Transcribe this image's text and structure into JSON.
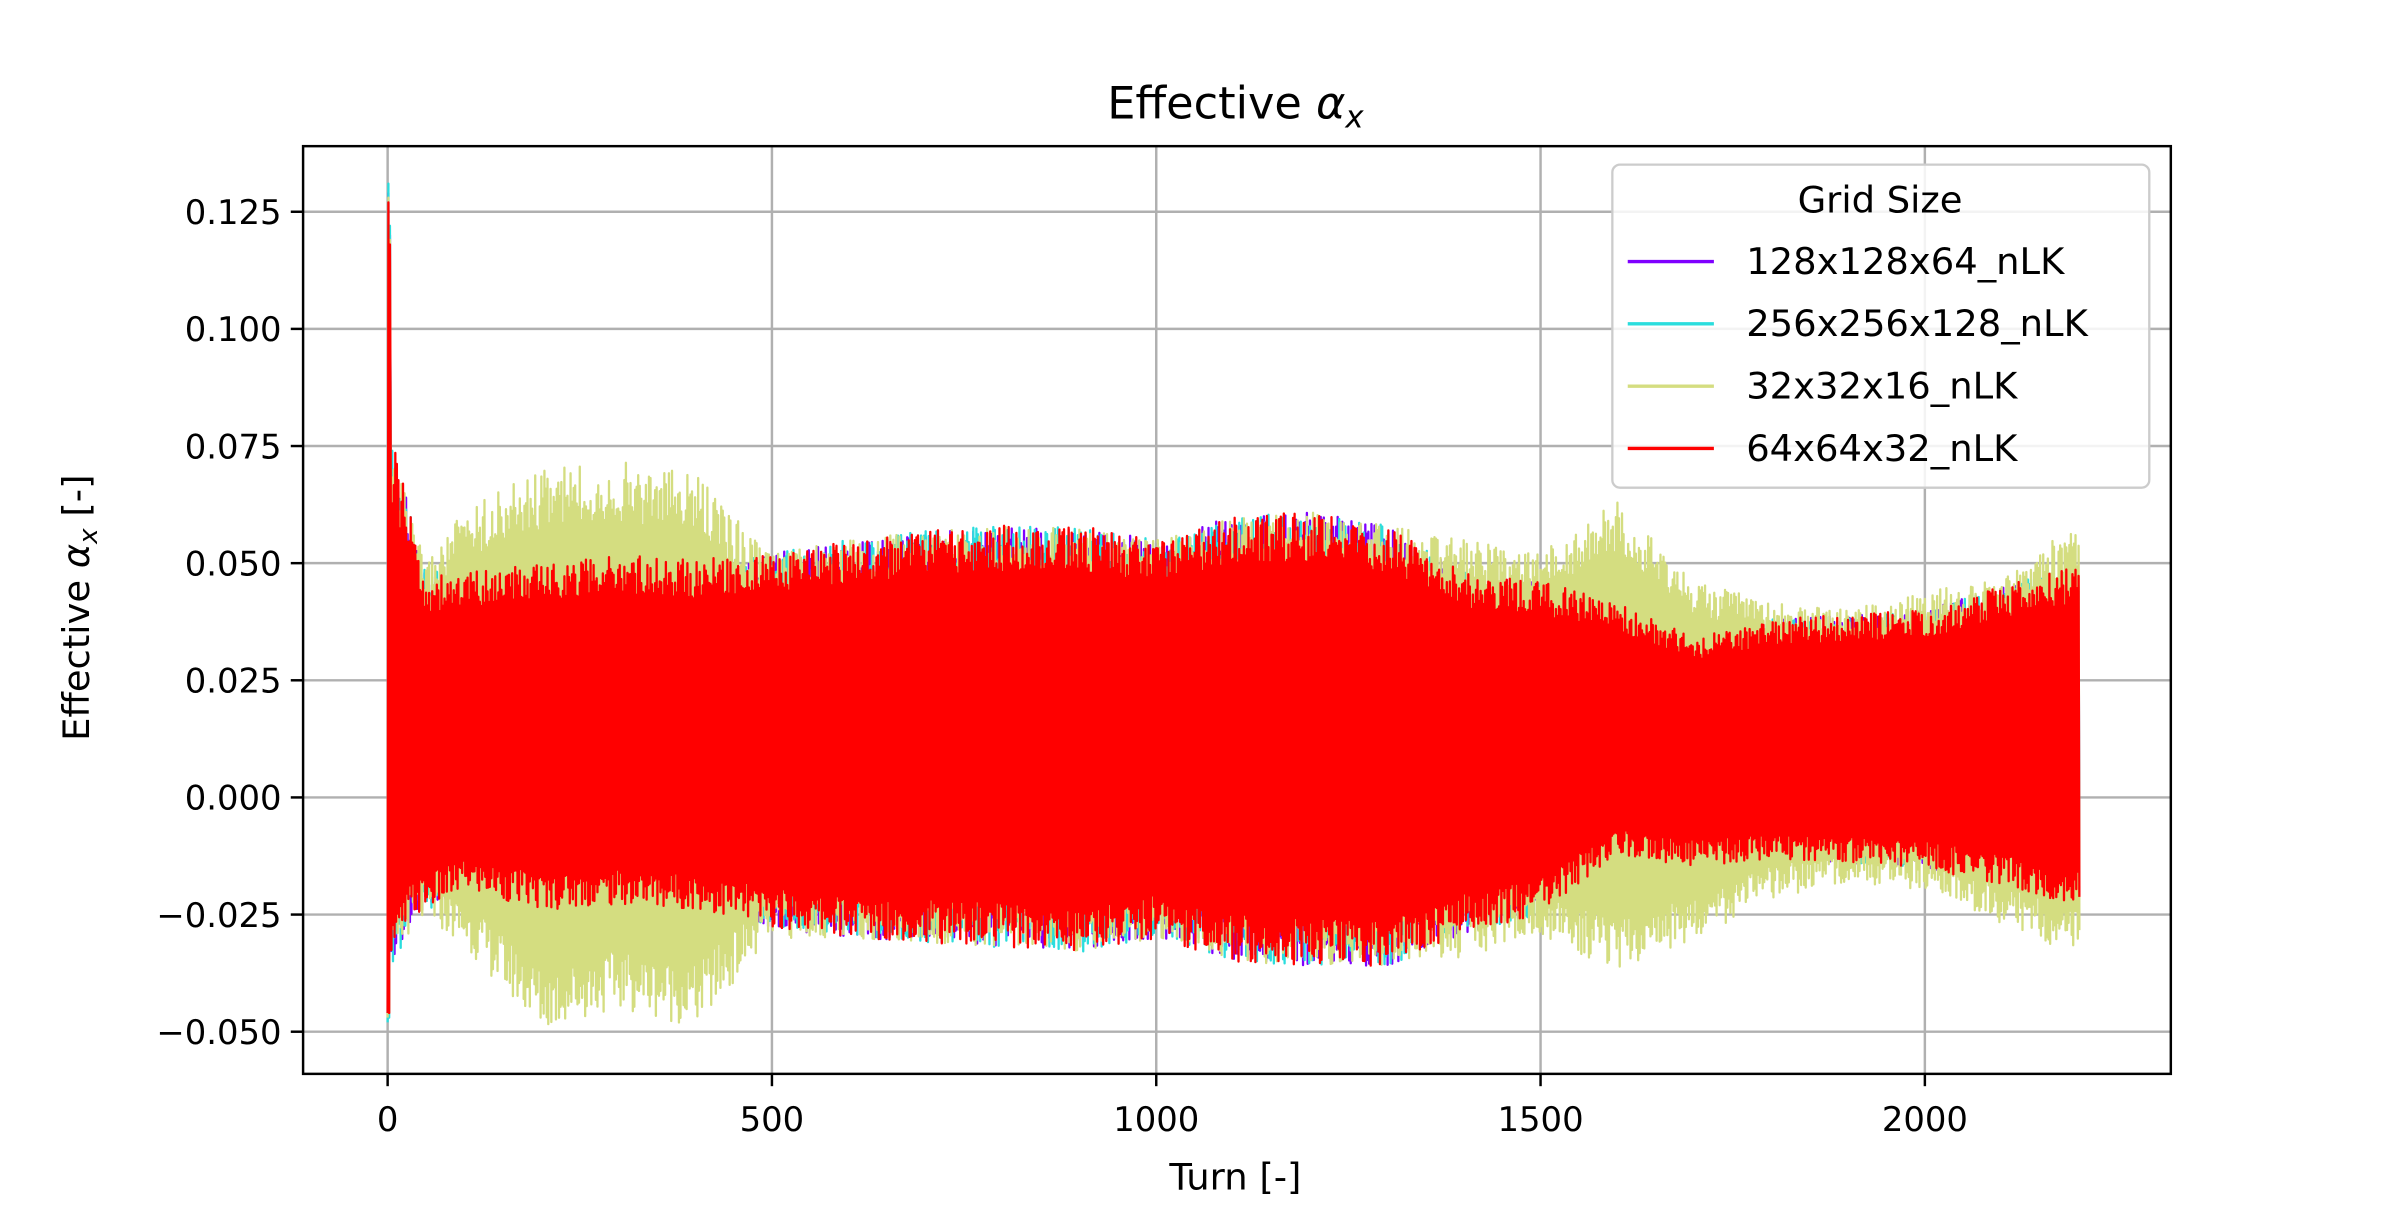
{
  "chart_data": {
    "type": "line",
    "title_main": "Effective ",
    "title_sym": "α",
    "title_sub": "x",
    "xlabel": "Turn [-]",
    "ylabel_pre": "Effective ",
    "ylabel_sym": "α",
    "ylabel_sub": "x",
    "ylabel_post": " [-]",
    "xlim": [
      -110,
      2320
    ],
    "ylim": [
      -0.059,
      0.139
    ],
    "xticks": [
      0,
      500,
      1000,
      1500,
      2000
    ],
    "xtick_labels": [
      "0",
      "500",
      "1000",
      "1500",
      "2000"
    ],
    "yticks": [
      -0.05,
      -0.025,
      0.0,
      0.025,
      0.05,
      0.075,
      0.1,
      0.125
    ],
    "ytick_labels": [
      "−0.050",
      "−0.025",
      "0.000",
      "0.025",
      "0.050",
      "0.075",
      "0.100",
      "0.125"
    ],
    "grid": true,
    "legend": {
      "title": "Grid Size",
      "placement": "top-right"
    },
    "oscillation_note": "Each series oscillates rapidly turn-by-turn between an upper and a lower envelope; envelope values below.",
    "series": [
      {
        "name": "128x128x64_nLK",
        "color": "#7f00ff",
        "first_point": [
          0,
          0.0
        ],
        "spike": [
          [
            0,
            -0.046
          ],
          [
            1,
            0.129
          ],
          [
            2,
            -0.046
          ],
          [
            3,
            0.12
          ]
        ],
        "envelope_x": [
          10,
          30,
          50,
          100,
          200,
          300,
          400,
          500,
          600,
          700,
          800,
          900,
          1000,
          1100,
          1200,
          1300,
          1400,
          1500,
          1600,
          1700,
          1800,
          1900,
          2000,
          2100,
          2200
        ],
        "upper": [
          0.074,
          0.06,
          0.047,
          0.048,
          0.05,
          0.052,
          0.051,
          0.052,
          0.055,
          0.057,
          0.058,
          0.058,
          0.055,
          0.06,
          0.061,
          0.058,
          0.048,
          0.046,
          0.042,
          0.034,
          0.038,
          0.039,
          0.04,
          0.045,
          0.05
        ],
        "lower": [
          -0.034,
          -0.026,
          -0.024,
          -0.02,
          -0.024,
          -0.023,
          -0.024,
          -0.028,
          -0.03,
          -0.031,
          -0.032,
          -0.033,
          -0.03,
          -0.035,
          -0.036,
          -0.036,
          -0.029,
          -0.025,
          -0.012,
          -0.015,
          -0.013,
          -0.014,
          -0.015,
          -0.019,
          -0.023
        ]
      },
      {
        "name": "256x256x128_nLK",
        "color": "#2adddd",
        "first_point": [
          0,
          0.0
        ],
        "spike": [
          [
            0,
            -0.048
          ],
          [
            1,
            0.131
          ],
          [
            2,
            -0.047
          ],
          [
            3,
            0.122
          ]
        ],
        "envelope_x": [
          10,
          30,
          50,
          100,
          200,
          300,
          400,
          500,
          600,
          700,
          800,
          900,
          1000,
          1100,
          1200,
          1300,
          1400,
          1500,
          1600,
          1700,
          1800,
          1900,
          2000,
          2100,
          2200
        ],
        "upper": [
          0.075,
          0.062,
          0.048,
          0.049,
          0.051,
          0.052,
          0.051,
          0.052,
          0.055,
          0.057,
          0.058,
          0.058,
          0.055,
          0.06,
          0.061,
          0.058,
          0.048,
          0.046,
          0.042,
          0.034,
          0.038,
          0.039,
          0.04,
          0.045,
          0.05
        ],
        "lower": [
          -0.035,
          -0.026,
          -0.024,
          -0.02,
          -0.024,
          -0.023,
          -0.024,
          -0.028,
          -0.03,
          -0.031,
          -0.032,
          -0.033,
          -0.03,
          -0.035,
          -0.036,
          -0.036,
          -0.029,
          -0.025,
          -0.012,
          -0.015,
          -0.013,
          -0.014,
          -0.015,
          -0.019,
          -0.023
        ]
      },
      {
        "name": "32x32x16_nLK",
        "color": "#d4dd80",
        "first_point": [
          0,
          0.0
        ],
        "spike": [
          [
            0,
            -0.047
          ],
          [
            1,
            0.128
          ],
          [
            2,
            -0.046
          ],
          [
            3,
            0.119
          ]
        ],
        "envelope_x": [
          10,
          30,
          50,
          100,
          200,
          300,
          400,
          500,
          600,
          700,
          800,
          900,
          1000,
          1100,
          1200,
          1300,
          1400,
          1500,
          1600,
          1700,
          1800,
          1900,
          2000,
          2100,
          2200
        ],
        "upper": [
          0.074,
          0.06,
          0.05,
          0.062,
          0.07,
          0.072,
          0.069,
          0.052,
          0.055,
          0.057,
          0.058,
          0.058,
          0.055,
          0.06,
          0.061,
          0.058,
          0.055,
          0.052,
          0.064,
          0.046,
          0.042,
          0.04,
          0.044,
          0.047,
          0.06
        ],
        "lower": [
          -0.035,
          -0.028,
          -0.026,
          -0.032,
          -0.05,
          -0.045,
          -0.049,
          -0.03,
          -0.03,
          -0.031,
          -0.032,
          -0.033,
          -0.03,
          -0.035,
          -0.036,
          -0.036,
          -0.034,
          -0.03,
          -0.037,
          -0.03,
          -0.022,
          -0.018,
          -0.02,
          -0.027,
          -0.034
        ]
      },
      {
        "name": "64x64x32_nLK",
        "color": "#ff0000",
        "first_point": [
          0,
          0.0
        ],
        "spike": [
          [
            0,
            -0.046
          ],
          [
            1,
            0.127
          ],
          [
            2,
            -0.046
          ],
          [
            3,
            0.118
          ]
        ],
        "envelope_x": [
          10,
          30,
          50,
          100,
          200,
          300,
          400,
          500,
          600,
          700,
          800,
          900,
          1000,
          1100,
          1200,
          1300,
          1400,
          1500,
          1600,
          1700,
          1800,
          1900,
          2000,
          2100,
          2200
        ],
        "upper": [
          0.074,
          0.06,
          0.047,
          0.048,
          0.05,
          0.052,
          0.051,
          0.052,
          0.055,
          0.057,
          0.058,
          0.058,
          0.055,
          0.06,
          0.061,
          0.058,
          0.048,
          0.046,
          0.042,
          0.034,
          0.038,
          0.039,
          0.04,
          0.045,
          0.05
        ],
        "lower": [
          -0.034,
          -0.026,
          -0.024,
          -0.02,
          -0.024,
          -0.023,
          -0.024,
          -0.028,
          -0.03,
          -0.031,
          -0.032,
          -0.033,
          -0.03,
          -0.035,
          -0.036,
          -0.036,
          -0.029,
          -0.025,
          -0.012,
          -0.015,
          -0.013,
          -0.014,
          -0.015,
          -0.019,
          -0.023
        ]
      }
    ],
    "x_end": 2200
  }
}
